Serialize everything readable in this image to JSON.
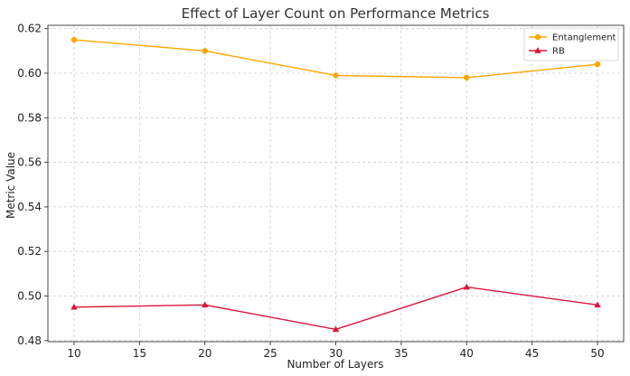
{
  "chart_data": {
    "type": "line",
    "title": "Effect of Layer Count on Performance Metrics",
    "xlabel": "Number of Layers",
    "ylabel": "Metric Value",
    "x": [
      10,
      20,
      30,
      40,
      50
    ],
    "xlim": [
      8,
      52
    ],
    "ylim": [
      0.4795,
      0.6215
    ],
    "xticks": [
      10,
      15,
      20,
      25,
      30,
      35,
      40,
      45,
      50
    ],
    "xtick_labels": [
      "10",
      "15",
      "20",
      "25",
      "30",
      "35",
      "40",
      "45",
      "50"
    ],
    "yticks": [
      0.48,
      0.5,
      0.52,
      0.54,
      0.56,
      0.58,
      0.6,
      0.62
    ],
    "ytick_labels": [
      "0.48",
      "0.50",
      "0.52",
      "0.54",
      "0.56",
      "0.58",
      "0.60",
      "0.62"
    ],
    "grid": true,
    "legend_position": "top-right",
    "series": [
      {
        "name": "Entanglement",
        "color": "#ffa500",
        "marker": "circle",
        "values": [
          0.615,
          0.61,
          0.599,
          0.598,
          0.604
        ]
      },
      {
        "name": "RB",
        "color": "#dc143c",
        "marker": "triangle",
        "values": [
          0.495,
          0.496,
          0.485,
          0.504,
          0.496
        ]
      }
    ]
  }
}
